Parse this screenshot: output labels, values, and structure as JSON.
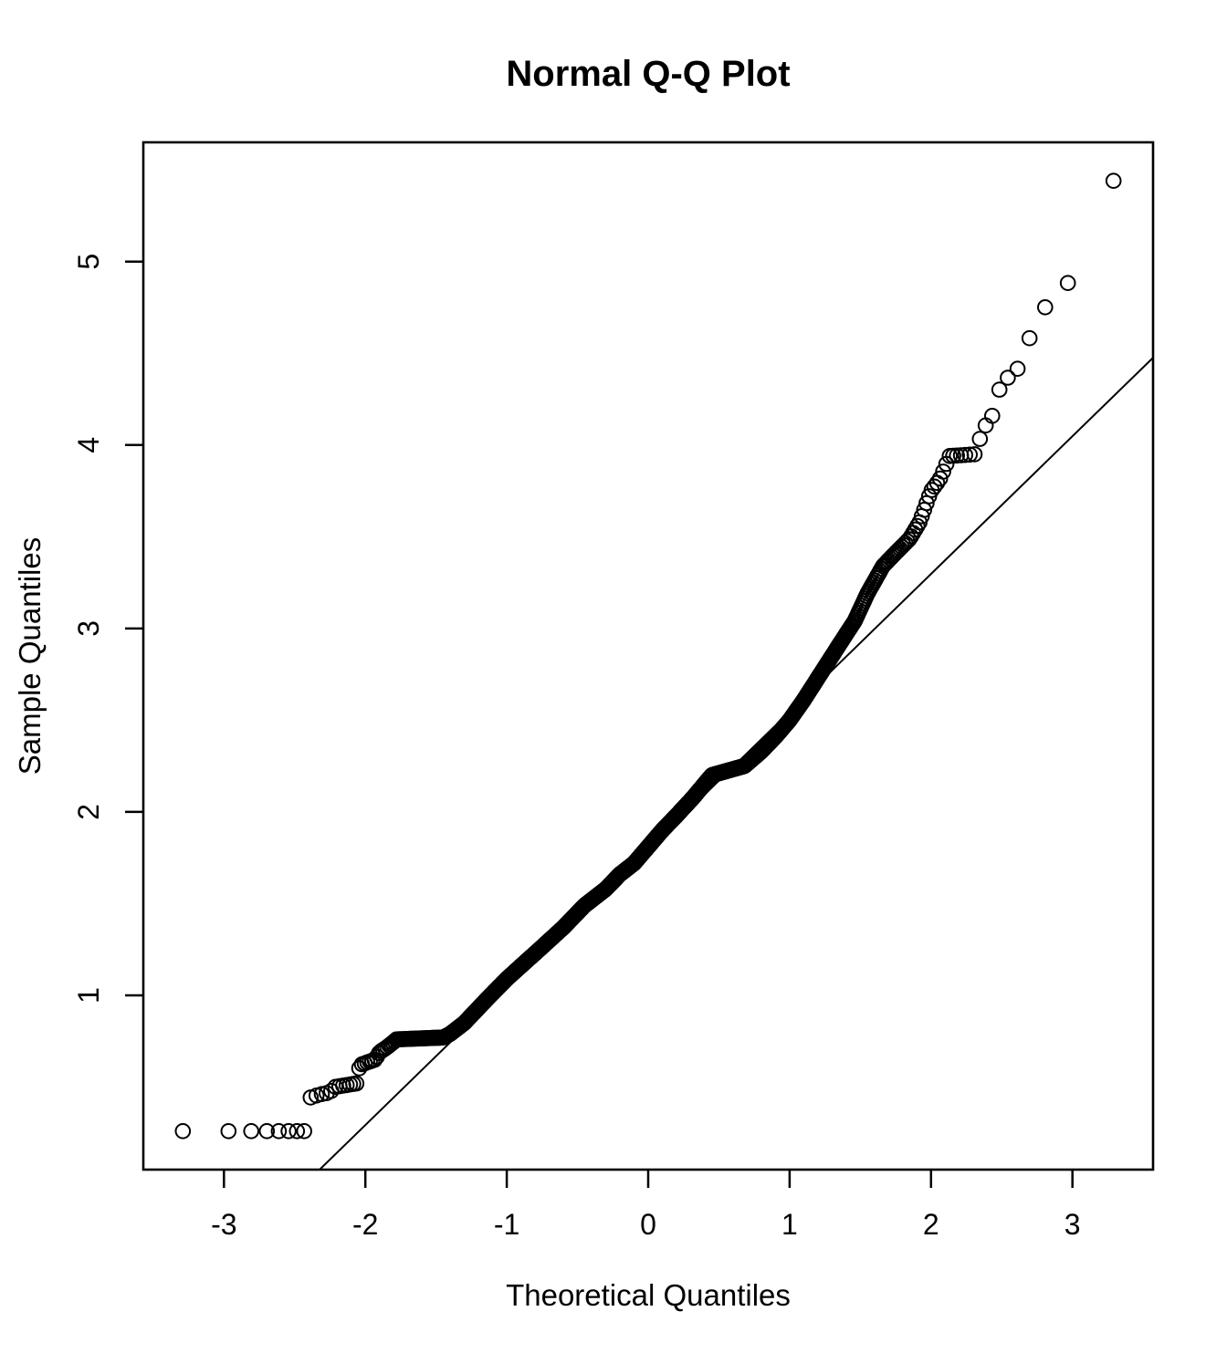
{
  "chart_data": {
    "type": "scatter",
    "subtype": "normal-qq-plot",
    "title": "Normal Q-Q Plot",
    "xlabel": "Theoretical Quantiles",
    "ylabel": "Sample Quantiles",
    "xlim": [
      -3.57,
      3.57
    ],
    "ylim": [
      0.05,
      5.65
    ],
    "x_tick_values": [
      -3,
      -2,
      -1,
      0,
      1,
      2,
      3
    ],
    "x_tick_labels": [
      "-3",
      "-2",
      "-1",
      "0",
      "1",
      "2",
      "3"
    ],
    "y_tick_values": [
      1,
      2,
      3,
      4,
      5
    ],
    "y_tick_labels": [
      "1",
      "2",
      "3",
      "4",
      "5"
    ],
    "grid": false,
    "legend": null,
    "n_points": 1000,
    "quantile_method": "p_i = (i - 0.5) / n, x_i = qnorm(p_i)",
    "curve_points": [
      [
        -3.29,
        0.26
      ],
      [
        -2.97,
        0.26
      ],
      [
        -2.42,
        0.26
      ],
      [
        -2.4,
        0.44
      ],
      [
        -2.32,
        0.46
      ],
      [
        -2.25,
        0.47
      ],
      [
        -2.22,
        0.5
      ],
      [
        -2.06,
        0.52
      ],
      [
        -2.04,
        0.62
      ],
      [
        -1.93,
        0.65
      ],
      [
        -1.9,
        0.69
      ],
      [
        -1.86,
        0.71
      ],
      [
        -1.81,
        0.74
      ],
      [
        -1.78,
        0.76
      ],
      [
        -1.45,
        0.77
      ],
      [
        -1.4,
        0.79
      ],
      [
        -1.3,
        0.85
      ],
      [
        -1.14,
        0.98
      ],
      [
        -1.0,
        1.09
      ],
      [
        -0.9,
        1.16
      ],
      [
        -0.77,
        1.25
      ],
      [
        -0.6,
        1.37
      ],
      [
        -0.45,
        1.49
      ],
      [
        -0.3,
        1.58
      ],
      [
        -0.2,
        1.66
      ],
      [
        -0.1,
        1.72
      ],
      [
        0.0,
        1.81
      ],
      [
        0.1,
        1.9
      ],
      [
        0.2,
        1.98
      ],
      [
        0.32,
        2.08
      ],
      [
        0.45,
        2.2
      ],
      [
        0.68,
        2.25
      ],
      [
        0.8,
        2.33
      ],
      [
        0.9,
        2.41
      ],
      [
        1.0,
        2.5
      ],
      [
        1.1,
        2.61
      ],
      [
        1.2,
        2.73
      ],
      [
        1.3,
        2.85
      ],
      [
        1.4,
        2.97
      ],
      [
        1.46,
        3.04
      ],
      [
        1.55,
        3.19
      ],
      [
        1.66,
        3.34
      ],
      [
        1.76,
        3.42
      ],
      [
        1.85,
        3.49
      ],
      [
        1.92,
        3.58
      ],
      [
        2.0,
        3.75
      ],
      [
        2.06,
        3.81
      ],
      [
        2.1,
        3.88
      ],
      [
        2.13,
        3.94
      ],
      [
        2.32,
        3.95
      ],
      [
        2.36,
        4.08
      ],
      [
        2.4,
        4.12
      ],
      [
        2.45,
        4.18
      ],
      [
        2.5,
        4.36
      ],
      [
        2.56,
        4.37
      ],
      [
        2.64,
        4.44
      ],
      [
        2.72,
        4.64
      ],
      [
        2.83,
        4.78
      ],
      [
        2.99,
        4.9
      ],
      [
        3.29,
        5.44
      ]
    ],
    "reference_line": {
      "slope": 0.751,
      "intercept": 1.795
    },
    "marker": {
      "shape": "open-circle",
      "radius_px": 7.8,
      "stroke_px": 2,
      "color": "#000000"
    },
    "colors": {
      "background": "#ffffff",
      "ink": "#000000"
    }
  }
}
